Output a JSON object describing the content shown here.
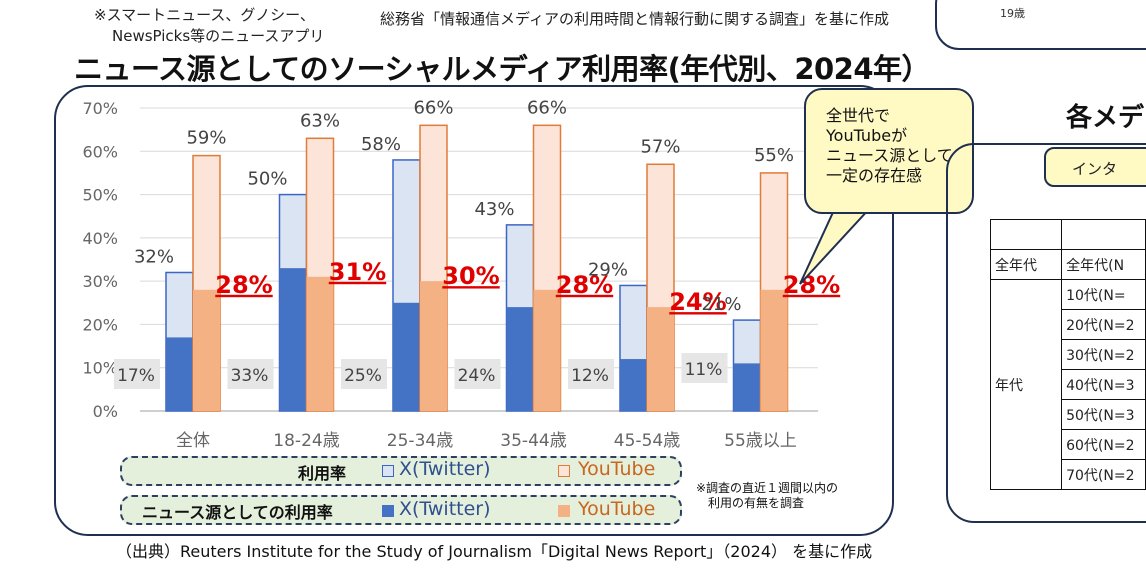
{
  "notes": {
    "top_left_1": "※スマートニュース、グノシー、",
    "top_left_2": "NewsPicks等のニュースアプリ",
    "top_center": "総務省「情報通信メディアの利用時間と情報行動に関する調査」を基に作成",
    "top_right_age": "19歳"
  },
  "title": "ニュース源としてのソーシャルメディア利用率(年代別、2024年）",
  "callout": [
    "全世代で",
    "YouTubeが",
    "ニュース源として",
    "一定の存在感"
  ],
  "legend": {
    "row1_title": "利用率",
    "row2_title": "ニュース源としての利用率",
    "x_label": "X(Twitter)",
    "yt_label": "YouTube"
  },
  "survey_note": [
    "※調査の直近１週間以内の",
    "利用の有無を調査"
  ],
  "footer": "（出典）Reuters Institute for the Study of Journalism「Digital News Report」（2024） を基に作成",
  "colors": {
    "x_usage_fill": "#dbe4f3",
    "x_usage_border": "#3a67c5",
    "x_news_fill": "#4472c4",
    "yt_usage_fill": "#fde4d8",
    "yt_usage_border": "#e07b39",
    "yt_news_fill": "#f4b183",
    "highlight_text": "#e00000",
    "callout_fill": "#fff9c4",
    "legend_fill": "#e4f0dc"
  },
  "chart_data": {
    "type": "bar",
    "categories": [
      "全体",
      "18-24歳",
      "25-34歳",
      "35-44歳",
      "45-54歳",
      "55歳以上"
    ],
    "y_ticks": [
      "0%",
      "10%",
      "20%",
      "30%",
      "40%",
      "50%",
      "60%",
      "70%"
    ],
    "ylim": [
      0,
      70
    ],
    "grid": true,
    "series": [
      {
        "name": "X(Twitter) 利用率",
        "values": [
          32,
          50,
          58,
          43,
          29,
          21
        ],
        "labels": [
          "32%",
          "50%",
          "58%",
          "43%",
          "29%",
          "21%"
        ]
      },
      {
        "name": "X(Twitter) ニュース源としての利用率",
        "values": [
          17,
          33,
          25,
          24,
          12,
          11
        ],
        "labels": [
          "17%",
          "33%",
          "25%",
          "24%",
          "12%",
          "11%"
        ]
      },
      {
        "name": "YouTube 利用率",
        "values": [
          59,
          63,
          66,
          66,
          57,
          55
        ],
        "labels": [
          "59%",
          "63%",
          "66%",
          "66%",
          "57%",
          "55%"
        ]
      },
      {
        "name": "YouTube ニュース源としての利用率",
        "values": [
          28,
          31,
          30,
          28,
          24,
          28
        ],
        "labels": [
          "28%",
          "31%",
          "30%",
          "28%",
          "24%",
          "28%"
        ]
      }
    ]
  },
  "right_panel": {
    "title": "各メデ",
    "pill": "インタ",
    "rows": [
      {
        "group": "全年代",
        "label": "全年代(N"
      },
      {
        "group": "",
        "label": "10代(N="
      },
      {
        "group": "",
        "label": "20代(N=2"
      },
      {
        "group": "",
        "label": "30代(N=2"
      },
      {
        "group": "年代",
        "label": "40代(N=3"
      },
      {
        "group": "",
        "label": "50代(N=3"
      },
      {
        "group": "",
        "label": "60代(N=2"
      },
      {
        "group": "",
        "label": "70代(N=2"
      }
    ]
  }
}
